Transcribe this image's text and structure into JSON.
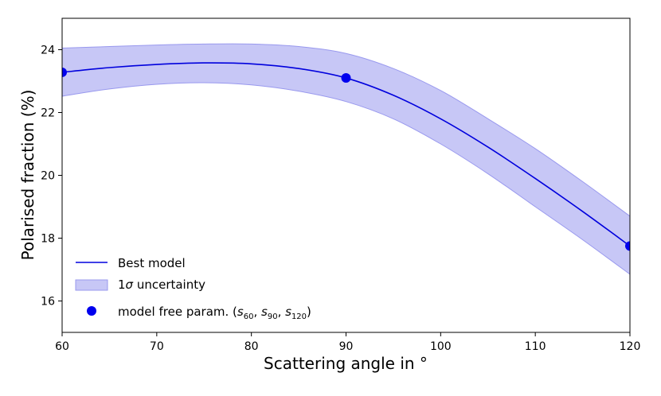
{
  "chart_data": {
    "type": "line",
    "xlabel": "Scattering angle in °",
    "ylabel": "Polarised fraction (%)",
    "xlim": [
      60,
      120
    ],
    "ylim": [
      15,
      25
    ],
    "xticks": [
      60,
      70,
      80,
      90,
      100,
      110,
      120
    ],
    "yticks": [
      16,
      18,
      20,
      22,
      24
    ],
    "grid": false,
    "legend_position": "bottom-left",
    "series": [
      {
        "name": "Best model",
        "kind": "line",
        "color": "#0000dd",
        "x": [
          60,
          65,
          70,
          75,
          80,
          85,
          90,
          95,
          100,
          105,
          110,
          115,
          120
        ],
        "y": [
          23.28,
          23.43,
          23.53,
          23.58,
          23.55,
          23.4,
          23.1,
          22.55,
          21.8,
          20.9,
          19.9,
          18.85,
          17.75
        ]
      },
      {
        "name": "1σ uncertainty",
        "kind": "band",
        "color": "#9999ee",
        "x": [
          60,
          65,
          70,
          75,
          80,
          85,
          90,
          95,
          100,
          105,
          110,
          115,
          120
        ],
        "lower": [
          22.52,
          22.75,
          22.9,
          22.95,
          22.88,
          22.68,
          22.35,
          21.8,
          21.0,
          20.05,
          19.0,
          17.95,
          16.85
        ],
        "upper": [
          24.05,
          24.1,
          24.15,
          24.18,
          24.18,
          24.1,
          23.88,
          23.4,
          22.7,
          21.8,
          20.85,
          19.8,
          18.7
        ]
      },
      {
        "name": "model free param. (s60, s90, s120)",
        "kind": "scatter",
        "color": "#0000ee",
        "x": [
          60,
          90,
          120
        ],
        "y": [
          23.28,
          23.1,
          17.75
        ]
      }
    ],
    "legend": {
      "line_label": "Best model",
      "band_label_prefix": "1",
      "band_label_symbol": "σ",
      "band_label_suffix": " uncertainty",
      "points_label_prefix": "model free param. (",
      "s_symbol": "s",
      "sub_a": "60",
      "sub_b": "90",
      "sub_c": "120",
      "separator": ", ",
      "points_label_suffix": ")"
    }
  }
}
